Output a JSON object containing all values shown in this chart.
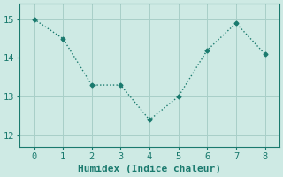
{
  "x": [
    0,
    1,
    2,
    3,
    4,
    5,
    6,
    7,
    8
  ],
  "y": [
    15.0,
    14.5,
    13.3,
    13.3,
    12.4,
    13.0,
    14.2,
    14.9,
    14.1
  ],
  "line_color": "#1a7a6e",
  "marker": "D",
  "marker_size": 2.5,
  "line_width": 1.0,
  "xlabel": "Humidex (Indice chaleur)",
  "xlabel_fontsize": 8,
  "bg_color": "#ceeae4",
  "grid_color": "#a8cfc8",
  "tick_label_fontsize": 7.5,
  "ylim": [
    11.7,
    15.4
  ],
  "xlim": [
    -0.5,
    8.5
  ],
  "yticks": [
    12,
    13,
    14,
    15
  ],
  "xticks": [
    0,
    1,
    2,
    3,
    4,
    5,
    6,
    7,
    8
  ]
}
